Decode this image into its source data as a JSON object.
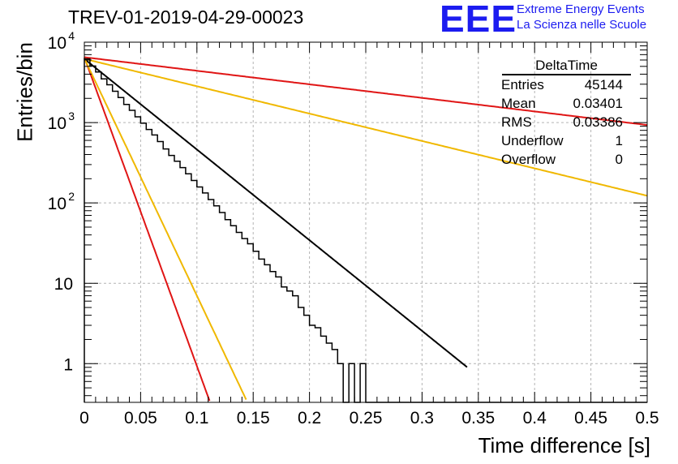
{
  "header": {
    "title": "TREV-01-2019-04-29-00023",
    "logo": "EEE",
    "logo_line1": "Extreme Energy Events",
    "logo_line2": "La Scienza nelle Scuole"
  },
  "stats_box": {
    "title": "DeltaTime",
    "rows": [
      {
        "label": "Entries",
        "value": "45144"
      },
      {
        "label": "Mean",
        "value": "0.03401"
      },
      {
        "label": "RMS",
        "value": "0.03386"
      },
      {
        "label": "Underflow",
        "value": "1"
      },
      {
        "label": "Overflow",
        "value": "0"
      }
    ]
  },
  "chart_data": {
    "type": "line",
    "title": "TREV-01-2019-04-29-00023",
    "xlabel": "Time difference [s]",
    "ylabel": "Entries/bin",
    "xlim": [
      0,
      0.5
    ],
    "ylim": [
      0.33,
      10000
    ],
    "yscale": "log",
    "grid": true,
    "x_ticks": [
      "0",
      "0.05",
      "0.1",
      "0.15",
      "0.2",
      "0.25",
      "0.3",
      "0.35",
      "0.4",
      "0.45",
      "0.5"
    ],
    "y_ticks": [
      {
        "value": 1,
        "label": "1"
      },
      {
        "value": 10,
        "label": "10"
      },
      {
        "value": 100,
        "label": "10",
        "sup": "2"
      },
      {
        "value": 1000,
        "label": "10",
        "sup": "3"
      },
      {
        "value": 10000,
        "label": "10",
        "sup": "4"
      }
    ],
    "histogram": {
      "color": "#000000",
      "bin_width": 0.005,
      "counts": [
        6200,
        5050,
        4250,
        3500,
        2950,
        2450,
        2050,
        1680,
        1420,
        1180,
        980,
        820,
        700,
        580,
        470,
        390,
        330,
        275,
        230,
        190,
        158,
        133,
        110,
        92,
        76,
        62,
        52,
        43,
        36,
        31,
        25,
        20,
        17,
        14,
        12,
        9,
        8,
        7,
        5,
        4,
        3,
        2.8,
        2.2,
        1.8,
        1.5,
        1,
        0,
        1,
        0,
        1,
        0,
        0,
        0,
        0,
        0,
        0,
        0,
        0,
        0,
        0,
        0,
        0,
        0,
        0,
        0,
        0,
        0,
        0,
        0,
        0,
        0,
        0,
        0,
        0,
        0,
        0,
        0,
        0,
        0,
        0,
        0,
        0,
        0,
        0,
        0,
        0,
        0,
        0,
        0,
        0,
        0,
        0,
        0,
        0,
        0,
        0,
        0,
        0,
        0,
        0
      ]
    },
    "series": [
      {
        "color": "#000000",
        "A": 6200,
        "tau": 0.0385,
        "x_end": 0.34
      },
      {
        "color": "#e01515",
        "A": 6500,
        "tau": 0.0113,
        "x_end": 0.5
      },
      {
        "color": "#f0b800",
        "A": 6300,
        "tau": 0.0147,
        "x_end": 0.5
      },
      {
        "color": "#e01515",
        "A": 6500,
        "tau": 0.2575,
        "x_end": 0.5
      },
      {
        "color": "#f0b800",
        "A": 6200,
        "tau": 0.1275,
        "x_end": 0.5
      }
    ]
  }
}
